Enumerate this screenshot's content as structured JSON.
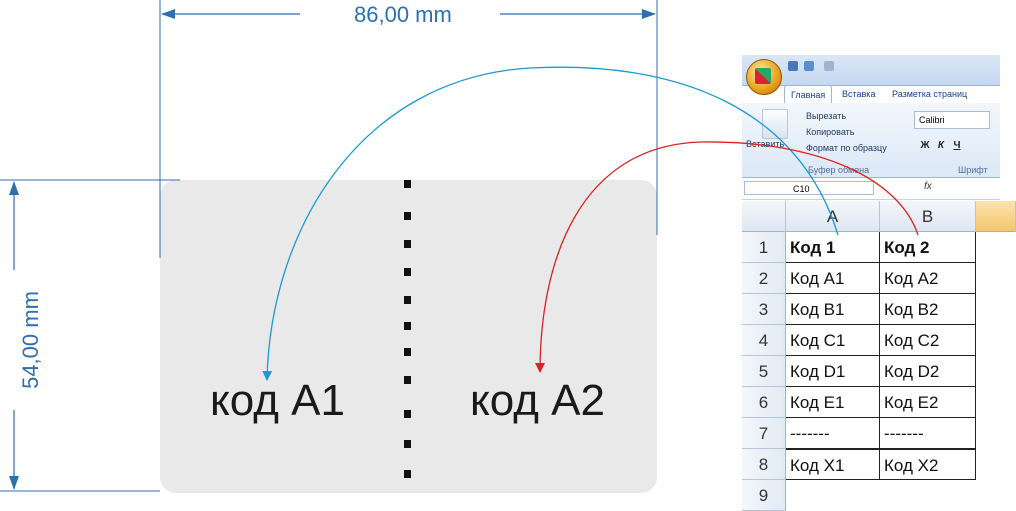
{
  "dimensions": {
    "width_label": "86,00 mm",
    "height_label": "54,00 mm"
  },
  "label": {
    "left_code": "код A1",
    "right_code": "код A2"
  },
  "excel": {
    "tabs": [
      "Главная",
      "Вставка",
      "Разметка страниц"
    ],
    "clipboard": {
      "cut": "Вырезать",
      "copy": "Копировать",
      "paste": "Вставить",
      "format_painter": "Формат по образцу",
      "group": "Буфер обмена"
    },
    "font": {
      "name": "Calibri",
      "group": "Шрифт",
      "bold": "Ж",
      "italic": "К",
      "underline": "Ч"
    },
    "name_box": "C10",
    "fx": "fx",
    "columns": [
      "A",
      "B"
    ],
    "rows": [
      {
        "n": "1",
        "a": "Код 1",
        "b": "Код 2"
      },
      {
        "n": "2",
        "a": "Код A1",
        "b": "Код A2"
      },
      {
        "n": "3",
        "a": "Код B1",
        "b": "Код B2"
      },
      {
        "n": "4",
        "a": "Код C1",
        "b": "Код C2"
      },
      {
        "n": "5",
        "a": "Код D1",
        "b": "Код D2"
      },
      {
        "n": "6",
        "a": "Код E1",
        "b": "Код E2"
      },
      {
        "n": "7",
        "a": "-------",
        "b": "-------"
      },
      {
        "n": "8",
        "a": "Код X1",
        "b": "Код X2"
      },
      {
        "n": "9",
        "a": "",
        "b": ""
      }
    ]
  },
  "colors": {
    "dimension": "#2f6fb0",
    "arrow_a": "#1a9ad6",
    "arrow_b": "#e02020",
    "card": "#e9e9e9"
  }
}
